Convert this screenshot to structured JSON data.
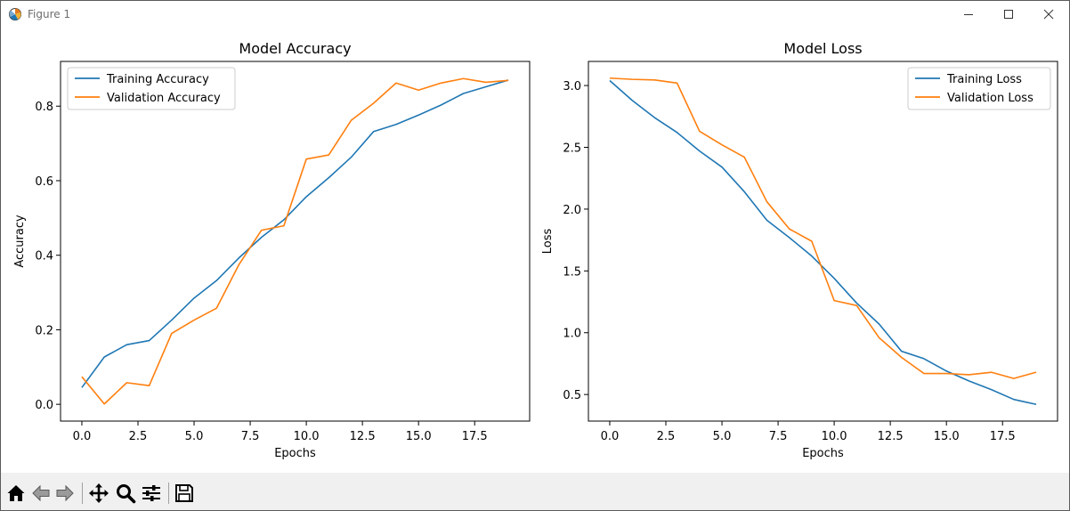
{
  "window": {
    "title": "Figure 1",
    "icons": {
      "app": "matplotlib-figure-icon",
      "minimize": "minimize-icon",
      "maximize": "maximize-icon",
      "close": "close-icon"
    }
  },
  "toolbar": {
    "buttons": [
      {
        "name": "home-button",
        "icon": "home-icon"
      },
      {
        "name": "back-button",
        "icon": "back-arrow-icon"
      },
      {
        "name": "forward-button",
        "icon": "forward-arrow-icon"
      },
      {
        "name": "pan-button",
        "icon": "pan-move-icon"
      },
      {
        "name": "zoom-button",
        "icon": "zoom-magnifier-icon"
      },
      {
        "name": "configure-subplots-button",
        "icon": "sliders-icon"
      },
      {
        "name": "save-button",
        "icon": "save-floppy-icon"
      }
    ]
  },
  "colors": {
    "series1": "#1f77b4",
    "series2": "#ff7f0e"
  },
  "chart_data": [
    {
      "type": "line",
      "title": "Model Accuracy",
      "xlabel": "Epochs",
      "ylabel": "Accuracy",
      "xlim": [
        -0.95,
        19.95
      ],
      "ylim": [
        -0.045,
        0.92
      ],
      "xticks": [
        0.0,
        2.5,
        5.0,
        7.5,
        10.0,
        12.5,
        15.0,
        17.5
      ],
      "xtick_labels": [
        "0.0",
        "2.5",
        "5.0",
        "7.5",
        "10.0",
        "12.5",
        "15.0",
        "17.5"
      ],
      "yticks": [
        0.0,
        0.2,
        0.4,
        0.6,
        0.8
      ],
      "ytick_labels": [
        "0.0",
        "0.2",
        "0.4",
        "0.6",
        "0.8"
      ],
      "legend_position": "upper-left",
      "grid": false,
      "x": [
        0,
        1,
        2,
        3,
        4,
        5,
        6,
        7,
        8,
        9,
        10,
        11,
        12,
        13,
        14,
        15,
        16,
        17,
        18,
        19
      ],
      "series": [
        {
          "name": "Training Accuracy",
          "color": "#1f77b4",
          "values": [
            0.045,
            0.127,
            0.16,
            0.171,
            0.226,
            0.285,
            0.332,
            0.393,
            0.448,
            0.495,
            0.557,
            0.608,
            0.663,
            0.732,
            0.751,
            0.776,
            0.803,
            0.834,
            0.852,
            0.87
          ]
        },
        {
          "name": "Validation Accuracy",
          "color": "#ff7f0e",
          "values": [
            0.074,
            0.001,
            0.058,
            0.05,
            0.19,
            0.226,
            0.258,
            0.375,
            0.467,
            0.479,
            0.658,
            0.669,
            0.762,
            0.808,
            0.862,
            0.843,
            0.862,
            0.874,
            0.864,
            0.869
          ]
        }
      ]
    },
    {
      "type": "line",
      "title": "Model Loss",
      "xlabel": "Epochs",
      "ylabel": "Loss",
      "xlim": [
        -0.95,
        19.95
      ],
      "ylim": [
        0.285,
        3.195
      ],
      "xticks": [
        0.0,
        2.5,
        5.0,
        7.5,
        10.0,
        12.5,
        15.0,
        17.5
      ],
      "xtick_labels": [
        "0.0",
        "2.5",
        "5.0",
        "7.5",
        "10.0",
        "12.5",
        "15.0",
        "17.5"
      ],
      "yticks": [
        0.5,
        1.0,
        1.5,
        2.0,
        2.5,
        3.0
      ],
      "ytick_labels": [
        "0.5",
        "1.0",
        "1.5",
        "2.0",
        "2.5",
        "3.0"
      ],
      "legend_position": "upper-right",
      "grid": false,
      "x": [
        0,
        1,
        2,
        3,
        4,
        5,
        6,
        7,
        8,
        9,
        10,
        11,
        12,
        13,
        14,
        15,
        16,
        17,
        18,
        19
      ],
      "series": [
        {
          "name": "Training Loss",
          "color": "#1f77b4",
          "values": [
            3.04,
            2.88,
            2.74,
            2.62,
            2.47,
            2.34,
            2.14,
            1.91,
            1.77,
            1.62,
            1.44,
            1.24,
            1.07,
            0.85,
            0.79,
            0.69,
            0.61,
            0.54,
            0.46,
            0.42
          ]
        },
        {
          "name": "Validation Loss",
          "color": "#ff7f0e",
          "values": [
            3.06,
            3.05,
            3.045,
            3.02,
            2.63,
            2.52,
            2.42,
            2.06,
            1.84,
            1.74,
            1.26,
            1.22,
            0.96,
            0.8,
            0.67,
            0.67,
            0.66,
            0.68,
            0.63,
            0.68
          ]
        }
      ]
    }
  ]
}
